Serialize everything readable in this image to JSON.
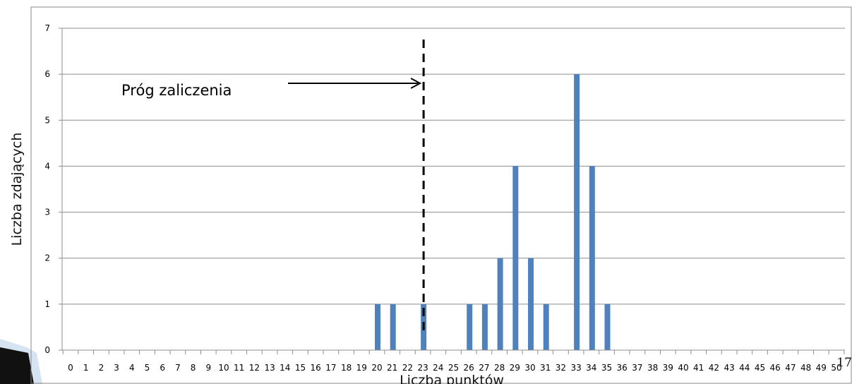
{
  "chart_data": {
    "type": "bar",
    "xlabel": "Liczba punktów",
    "ylabel": "Liczba zdających",
    "ylim": [
      0,
      7
    ],
    "yticks": [
      0,
      1,
      2,
      3,
      4,
      5,
      6,
      7
    ],
    "grid": true,
    "categories": [
      "0",
      "1",
      "2",
      "3",
      "4",
      "5",
      "6",
      "7",
      "8",
      "9",
      "10",
      "11",
      "12",
      "13",
      "14",
      "15",
      "16",
      "17",
      "18",
      "19",
      "20",
      "21",
      "22",
      "23",
      "24",
      "25",
      "26",
      "27",
      "28",
      "29",
      "30",
      "31",
      "32",
      "33",
      "34",
      "35",
      "36",
      "37",
      "38",
      "39",
      "40",
      "41",
      "42",
      "43",
      "44",
      "45",
      "46",
      "47",
      "48",
      "49",
      "50"
    ],
    "values": [
      0,
      0,
      0,
      0,
      0,
      0,
      0,
      0,
      0,
      0,
      0,
      0,
      0,
      0,
      0,
      0,
      0,
      0,
      0,
      0,
      1,
      1,
      0,
      1,
      0,
      0,
      1,
      1,
      2,
      4,
      2,
      1,
      0,
      6,
      4,
      1,
      0,
      0,
      0,
      0,
      0,
      0,
      0,
      0,
      0,
      0,
      0,
      0,
      0,
      0,
      0
    ],
    "bar_color": "#4f81bd",
    "annotation": {
      "label": "Próg zaliczenia",
      "threshold_x": 23.5
    }
  },
  "page_number": "17"
}
